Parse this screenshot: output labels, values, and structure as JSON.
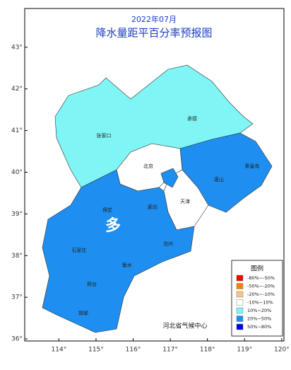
{
  "header": {
    "title": "2022年07月",
    "subtitle": "降水量距平百分率预报图"
  },
  "map": {
    "xlim": [
      113.08,
      120.06
    ],
    "ylim": [
      35.95,
      43.93
    ],
    "xticks": [
      {
        "value": 114,
        "label": "114°"
      },
      {
        "value": 115,
        "label": "115°"
      },
      {
        "value": 116,
        "label": "116°"
      },
      {
        "value": 117,
        "label": "117°"
      },
      {
        "value": 118,
        "label": "118°"
      },
      {
        "value": 119,
        "label": "119°"
      },
      {
        "value": 120,
        "label": "120°"
      }
    ],
    "yticks": [
      {
        "value": 36,
        "label": "36°"
      },
      {
        "value": 37,
        "label": "37°"
      },
      {
        "value": 38,
        "label": "38°"
      },
      {
        "value": 39,
        "label": "39°"
      },
      {
        "value": 40,
        "label": "40°"
      },
      {
        "value": 41,
        "label": "41°"
      },
      {
        "value": 42,
        "label": "42°"
      },
      {
        "value": 43,
        "label": "43°"
      }
    ],
    "cities": [
      "张家口",
      "承德",
      "北京",
      "天津",
      "唐山",
      "秦皇岛",
      "保定",
      "廊坊",
      "沧州",
      "石家庄",
      "衡水",
      "邢台",
      "邯郸"
    ],
    "annotation": "多"
  },
  "legend": {
    "title": "图例",
    "items": [
      {
        "label": "-80%~-50%",
        "color": "#ff0000"
      },
      {
        "label": "-50%~-20%",
        "color": "#ff8000"
      },
      {
        "label": "-20%~-10%",
        "color": "#f5c48a"
      },
      {
        "label": "-10%~10%",
        "color": "#ffffff"
      },
      {
        "label": "10%~20%",
        "color": "#7ff5f5"
      },
      {
        "label": "20%~50%",
        "color": "#1e8ff0"
      },
      {
        "label": "50%~80%",
        "color": "#0000ee"
      }
    ]
  },
  "footer": "河北省气候中心"
}
